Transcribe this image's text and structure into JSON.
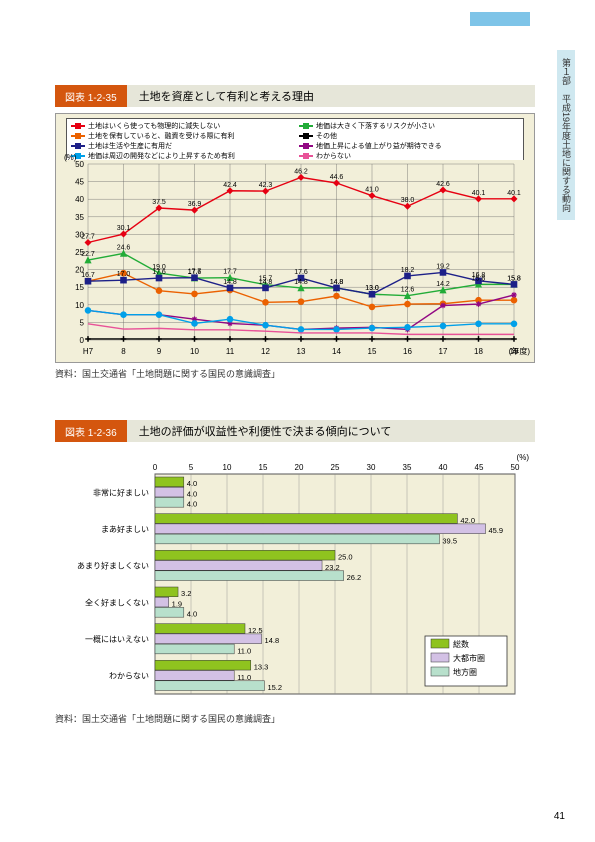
{
  "sideTab": "第１部　平成19年度土地に関する動向",
  "pageNumber": "41",
  "chart1": {
    "label": "図表 1-2-35",
    "title": "土地を資産として有利と考える理由",
    "yAxisUnit": "(%)",
    "xAxisUnit": "(年度)",
    "source": "資料：国土交通省「土地問題に関する国民の意識調査」",
    "yMax": 50,
    "yStep": 5,
    "xLabels": [
      "H7",
      "8",
      "9",
      "10",
      "11",
      "12",
      "13",
      "14",
      "15",
      "16",
      "17",
      "18",
      "19"
    ],
    "series": [
      {
        "name": "土地はいくら使っても物理的に減失しない",
        "color": "#e60012",
        "marker": "diamond",
        "values": [
          27.7,
          30.1,
          37.5,
          36.9,
          42.4,
          42.3,
          46.2,
          44.6,
          41.0,
          38.0,
          42.6,
          40.1,
          40.1
        ]
      },
      {
        "name": "地価は大きく下落するリスクが小さい",
        "color": "#22ac38",
        "marker": "triangle",
        "values": [
          22.7,
          24.6,
          19.0,
          17.6,
          17.7,
          15.7,
          14.8,
          14.8,
          13.0,
          12.6,
          14.2,
          15.8,
          15.8
        ]
      },
      {
        "name": "土地を保有していると、融資を受ける際に有利",
        "color": "#eb6100",
        "marker": "circle",
        "values": [
          16.7,
          19.0,
          14.0,
          13.1,
          14.2,
          10.7,
          10.9,
          12.5,
          9.4,
          10.2,
          10.3,
          11.3,
          11.3
        ]
      },
      {
        "name": "その他",
        "color": "#000000",
        "marker": "plus",
        "values": [
          0.3,
          0.3,
          0.3,
          0.3,
          0.3,
          0.3,
          0.3,
          0.3,
          0.3,
          0.3,
          0.3,
          0.3,
          0.3
        ]
      },
      {
        "name": "土地は生活や生産に有用だ",
        "color": "#1d2088",
        "marker": "square",
        "values": [
          16.7,
          17.0,
          17.6,
          17.7,
          14.8,
          14.8,
          17.6,
          14.8,
          13.0,
          18.2,
          19.2,
          16.8,
          15.8
        ]
      },
      {
        "name": "地価上昇による値上がり益が期待できる",
        "color": "#920783",
        "marker": "star",
        "values": [
          8.4,
          7.2,
          7.2,
          5.9,
          4.7,
          4.2,
          3.0,
          3.4,
          3.6,
          3.0,
          9.8,
          10.2,
          12.8
        ]
      },
      {
        "name": "地価は周辺の開発などにより上昇するため有利",
        "color": "#00a0e9",
        "marker": "circle",
        "values": [
          8.4,
          7.2,
          7.2,
          4.7,
          5.9,
          4.2,
          3.0,
          3.0,
          3.4,
          3.6,
          4.0,
          4.6,
          4.6
        ]
      },
      {
        "name": "わからない",
        "color": "#e85298",
        "marker": "line",
        "values": [
          4.6,
          3.1,
          3.3,
          2.9,
          2.9,
          2.5,
          2.0,
          2.0,
          2.0,
          1.6,
          1.6,
          1.6,
          1.6
        ]
      }
    ]
  },
  "chart2": {
    "label": "図表 1-2-36",
    "title": "土地の評価が収益性や利便性で決まる傾向について",
    "xAxisUnit": "(%)",
    "source": "資料：国土交通省「土地問題に関する国民の意識調査」",
    "xMax": 50,
    "xStep": 5,
    "categories": [
      "非常に好ましい",
      "まあ好ましい",
      "あまり好ましくない",
      "全く好ましくない",
      "一概にはいえない",
      "わからない"
    ],
    "groups": [
      {
        "name": "総数",
        "color": "#8fc31f",
        "values": [
          4.0,
          42.0,
          25.0,
          3.2,
          12.5,
          13.3
        ]
      },
      {
        "name": "大都市圏",
        "color": "#d3c1e5",
        "values": [
          4.0,
          45.9,
          23.2,
          1.9,
          14.8,
          11.0
        ]
      },
      {
        "name": "地方圏",
        "color": "#b8e0cc",
        "values": [
          4.0,
          39.5,
          26.2,
          4.0,
          11.0,
          15.2
        ]
      }
    ]
  }
}
